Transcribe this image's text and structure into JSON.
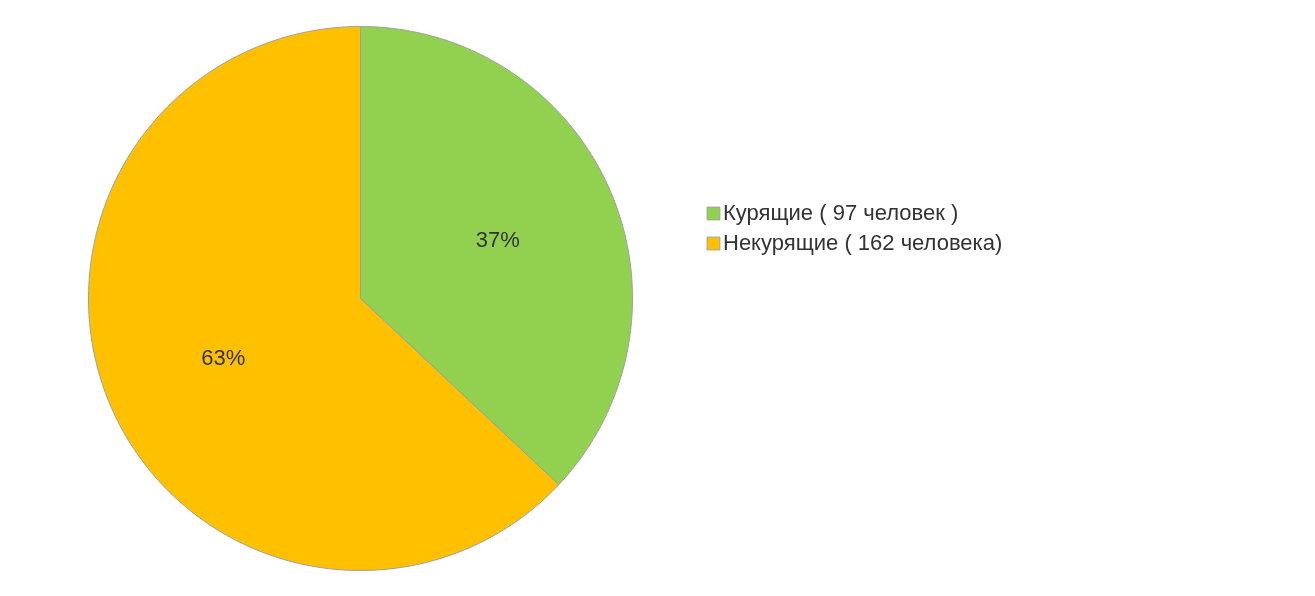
{
  "chart_data": {
    "type": "pie",
    "categories": [
      "Курящие ( 97 человек )",
      "Некурящие ( 162 человека)"
    ],
    "values": [
      37,
      63
    ],
    "colors": [
      "#92d050",
      "#ffc000"
    ],
    "value_labels": [
      "37%",
      "63%"
    ],
    "legend": "right"
  }
}
